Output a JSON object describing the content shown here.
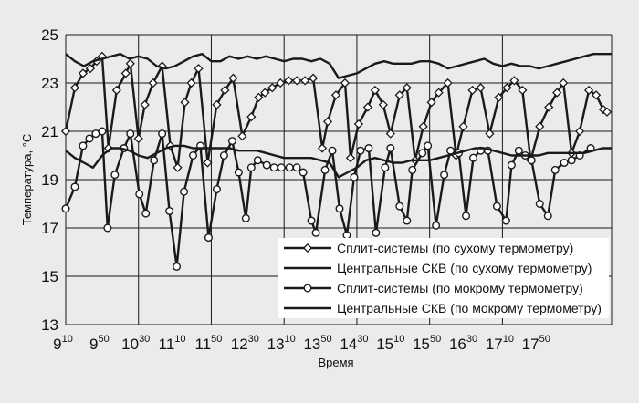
{
  "chart_data": {
    "type": "line",
    "title": "",
    "xlabel": "Время",
    "ylabel": "Температура, °С",
    "ylim": [
      13,
      25
    ],
    "yticks": [
      13,
      15,
      17,
      19,
      21,
      23,
      25
    ],
    "xlim": [
      0,
      600
    ],
    "xticks": [
      {
        "hour": "9",
        "minute": "10",
        "t": 0
      },
      {
        "hour": "9",
        "minute": "50",
        "t": 40
      },
      {
        "hour": "10",
        "minute": "30",
        "t": 80
      },
      {
        "hour": "11",
        "minute": "10",
        "t": 120
      },
      {
        "hour": "11",
        "minute": "50",
        "t": 160
      },
      {
        "hour": "12",
        "minute": "30",
        "t": 200
      },
      {
        "hour": "13",
        "minute": "10",
        "t": 240
      },
      {
        "hour": "13",
        "minute": "50",
        "t": 280
      },
      {
        "hour": "14",
        "minute": "30",
        "t": 320
      },
      {
        "hour": "15",
        "minute": "10",
        "t": 360
      },
      {
        "hour": "15",
        "minute": "50",
        "t": 400
      },
      {
        "hour": "16",
        "minute": "30",
        "t": 440
      },
      {
        "hour": "17",
        "minute": "10",
        "t": 480
      },
      {
        "hour": "17",
        "minute": "50",
        "t": 520
      }
    ],
    "grid": true,
    "legend_position": "bottom-right",
    "series": [
      {
        "name": "Сплит-системы (по сухому термометру)",
        "color": "#1a1a1a",
        "marker": "diamond",
        "x": [
          0,
          10,
          19,
          27,
          34,
          40,
          47,
          56,
          66,
          71,
          80,
          87,
          96,
          106,
          115,
          123,
          131,
          138,
          146,
          156,
          166,
          175,
          184,
          194,
          204,
          212,
          219,
          227,
          236,
          245,
          254,
          263,
          272,
          282,
          288,
          297,
          307,
          313,
          322,
          332,
          340,
          349,
          357,
          367,
          375,
          384,
          393,
          402,
          410,
          420,
          429,
          437,
          447,
          456,
          466,
          476,
          485,
          493,
          502,
          511,
          521,
          531,
          540,
          547,
          556,
          565,
          575,
          583,
          591,
          595
        ],
        "y": [
          21.0,
          22.8,
          23.4,
          23.6,
          23.9,
          24.1,
          20.3,
          22.7,
          23.4,
          23.8,
          20.7,
          22.1,
          23.0,
          23.7,
          20.4,
          19.5,
          22.2,
          23.0,
          23.6,
          19.7,
          22.1,
          22.7,
          23.2,
          20.8,
          21.6,
          22.4,
          22.6,
          22.8,
          23.0,
          23.1,
          23.1,
          23.1,
          23.2,
          20.3,
          21.4,
          22.5,
          23.0,
          19.9,
          21.3,
          22.0,
          22.7,
          22.1,
          20.9,
          22.5,
          22.8,
          19.8,
          21.2,
          22.2,
          22.6,
          23.0,
          20.0,
          21.2,
          22.7,
          22.8,
          20.9,
          22.4,
          22.8,
          23.1,
          22.7,
          19.8,
          21.2,
          22.0,
          22.6,
          23.0,
          20.1,
          21.0,
          22.7,
          22.5,
          21.9,
          21.8
        ]
      },
      {
        "name": "Центральные СКВ (по сухому термометру)",
        "color": "#1a1a1a",
        "marker": "none",
        "x": [
          0,
          10,
          20,
          30,
          40,
          50,
          60,
          70,
          80,
          90,
          100,
          110,
          120,
          130,
          140,
          150,
          160,
          170,
          180,
          190,
          200,
          210,
          220,
          230,
          240,
          250,
          260,
          270,
          280,
          290,
          300,
          310,
          320,
          330,
          340,
          350,
          360,
          370,
          380,
          390,
          400,
          410,
          420,
          430,
          440,
          450,
          460,
          470,
          480,
          490,
          500,
          510,
          520,
          530,
          540,
          550,
          560,
          570,
          580,
          590,
          600
        ],
        "y": [
          24.2,
          23.9,
          23.7,
          23.9,
          24.0,
          24.1,
          24.2,
          24.0,
          24.1,
          24.0,
          23.7,
          23.6,
          23.7,
          23.9,
          24.1,
          24.2,
          23.9,
          23.9,
          24.1,
          24.0,
          24.1,
          24.0,
          24.1,
          24.0,
          23.9,
          24.0,
          24.0,
          23.9,
          24.0,
          23.8,
          23.2,
          23.3,
          23.4,
          23.6,
          23.8,
          23.9,
          23.8,
          23.8,
          23.8,
          23.9,
          23.9,
          23.8,
          23.6,
          23.7,
          23.8,
          23.9,
          24.0,
          23.8,
          23.7,
          23.8,
          23.7,
          23.7,
          23.6,
          23.7,
          23.8,
          23.9,
          24.0,
          24.1,
          24.2,
          24.2,
          24.2
        ]
      },
      {
        "name": "Сплит-системы (по мокрому термометру)",
        "color": "#1a1a1a",
        "marker": "circle",
        "x": [
          0,
          10,
          19,
          26,
          33,
          40,
          46,
          54,
          64,
          71,
          81,
          88,
          97,
          106,
          114,
          122,
          130,
          140,
          148,
          157,
          166,
          174,
          183,
          190,
          198,
          204,
          211,
          221,
          229,
          237,
          246,
          254,
          261,
          270,
          275,
          285,
          293,
          301,
          309,
          317,
          324,
          333,
          341,
          351,
          357,
          367,
          375,
          381,
          392,
          398,
          407,
          416,
          423,
          432,
          440,
          448,
          456,
          464,
          474,
          484,
          490,
          498,
          505,
          512,
          521,
          530,
          538,
          548,
          556,
          565,
          577
        ],
        "y": [
          17.8,
          18.7,
          20.4,
          20.7,
          20.9,
          21.0,
          17.0,
          19.2,
          20.3,
          20.9,
          18.4,
          17.6,
          19.8,
          20.9,
          17.7,
          15.4,
          18.5,
          20.0,
          20.4,
          16.6,
          18.6,
          20.0,
          20.6,
          19.3,
          17.4,
          19.5,
          19.8,
          19.6,
          19.5,
          19.5,
          19.5,
          19.5,
          19.3,
          17.3,
          16.8,
          19.4,
          20.2,
          17.8,
          16.7,
          19.1,
          20.2,
          20.3,
          16.8,
          19.5,
          20.3,
          17.9,
          17.3,
          19.4,
          20.1,
          20.4,
          17.1,
          19.2,
          20.2,
          20.1,
          17.5,
          19.9,
          20.2,
          20.2,
          17.9,
          17.3,
          19.6,
          20.2,
          20.0,
          19.8,
          18.0,
          17.5,
          19.4,
          19.7,
          19.8,
          20.0,
          20.3
        ]
      },
      {
        "name": "Центральные СКВ (по мокрому термометру)",
        "color": "#1a1a1a",
        "marker": "none",
        "x": [
          0,
          10,
          20,
          30,
          40,
          50,
          60,
          70,
          80,
          90,
          100,
          110,
          120,
          130,
          140,
          150,
          160,
          170,
          180,
          190,
          200,
          210,
          220,
          230,
          240,
          250,
          260,
          270,
          280,
          290,
          300,
          310,
          320,
          330,
          340,
          350,
          360,
          370,
          380,
          390,
          400,
          410,
          420,
          430,
          440,
          450,
          460,
          470,
          480,
          490,
          500,
          510,
          520,
          530,
          540,
          550,
          560,
          570,
          580,
          590,
          600
        ],
        "y": [
          20.2,
          19.9,
          19.7,
          19.5,
          20.0,
          20.3,
          20.3,
          20.2,
          20.0,
          19.9,
          20.1,
          20.3,
          20.4,
          20.4,
          20.3,
          20.3,
          20.3,
          20.3,
          20.3,
          20.2,
          20.2,
          20.2,
          20.1,
          20.0,
          19.9,
          19.9,
          19.9,
          19.9,
          19.8,
          19.7,
          19.1,
          19.3,
          19.5,
          19.8,
          19.9,
          19.8,
          19.7,
          19.7,
          19.8,
          19.8,
          19.8,
          19.9,
          20.0,
          20.1,
          20.2,
          20.3,
          20.3,
          20.2,
          20.1,
          20.0,
          20.0,
          20.0,
          20.0,
          20.1,
          20.1,
          20.1,
          20.1,
          20.1,
          20.2,
          20.3,
          20.3
        ]
      }
    ]
  }
}
